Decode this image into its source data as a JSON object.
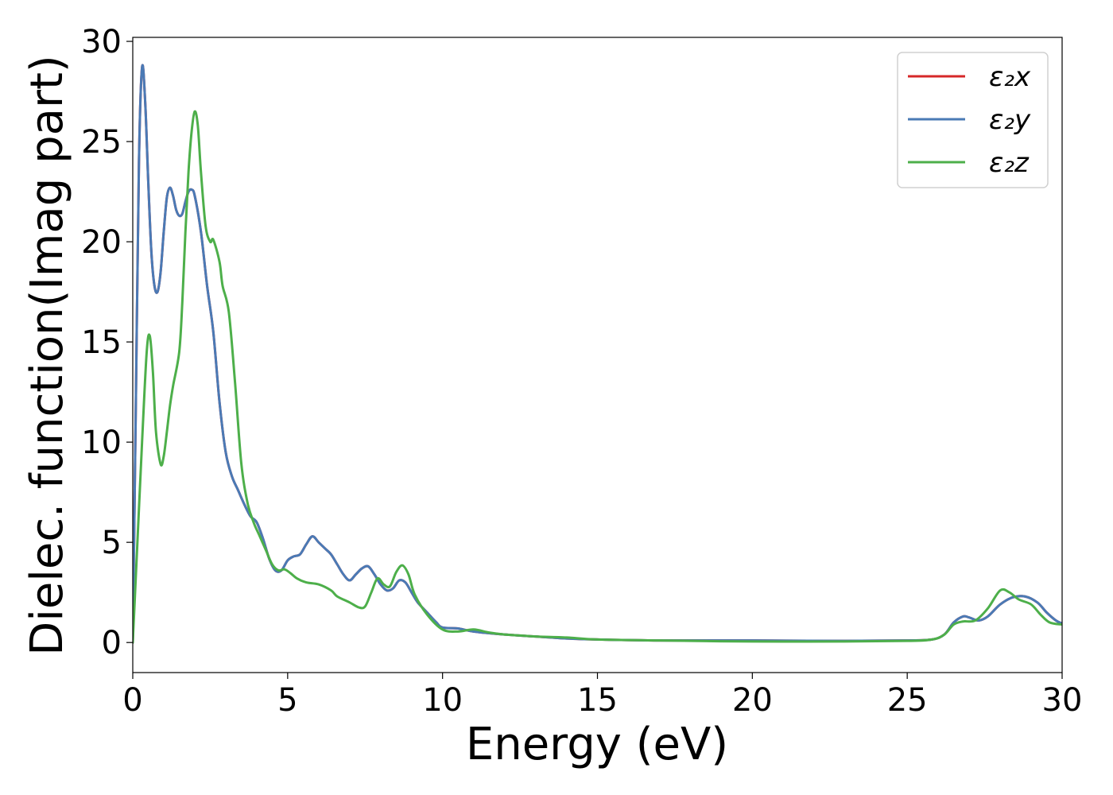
{
  "chart_data": {
    "type": "line",
    "title": "",
    "xlabel": "Energy (eV)",
    "ylabel": "Dielec. function(Imag part)",
    "xlim": [
      0,
      30
    ],
    "ylim": [
      -1.5,
      30.2
    ],
    "xticks": [
      0,
      5,
      10,
      15,
      20,
      25,
      30
    ],
    "yticks": [
      0,
      5,
      10,
      15,
      20,
      25,
      30
    ],
    "grid": false,
    "legend_position": "top-right",
    "series": [
      {
        "name": "ε₂x",
        "color": "#d62728",
        "points": [
          [
            0,
            0
          ],
          [
            0.1,
            12
          ],
          [
            0.2,
            24
          ],
          [
            0.3,
            28.7
          ],
          [
            0.4,
            27
          ],
          [
            0.5,
            23
          ],
          [
            0.6,
            19.5
          ],
          [
            0.7,
            17.8
          ],
          [
            0.8,
            17.5
          ],
          [
            0.9,
            18.5
          ],
          [
            1.0,
            20.5
          ],
          [
            1.1,
            22.2
          ],
          [
            1.2,
            22.7
          ],
          [
            1.3,
            22.3
          ],
          [
            1.4,
            21.6
          ],
          [
            1.5,
            21.3
          ],
          [
            1.6,
            21.4
          ],
          [
            1.7,
            22
          ],
          [
            1.8,
            22.5
          ],
          [
            1.9,
            22.6
          ],
          [
            2.0,
            22.3
          ],
          [
            2.2,
            20.5
          ],
          [
            2.4,
            17.8
          ],
          [
            2.6,
            15.5
          ],
          [
            2.8,
            12
          ],
          [
            3.0,
            9.5
          ],
          [
            3.2,
            8.3
          ],
          [
            3.4,
            7.6
          ],
          [
            3.6,
            6.9
          ],
          [
            3.8,
            6.3
          ],
          [
            4.0,
            6
          ],
          [
            4.2,
            5.2
          ],
          [
            4.4,
            4.2
          ],
          [
            4.6,
            3.6
          ],
          [
            4.8,
            3.6
          ],
          [
            5.0,
            4.1
          ],
          [
            5.2,
            4.3
          ],
          [
            5.4,
            4.4
          ],
          [
            5.6,
            4.9
          ],
          [
            5.8,
            5.3
          ],
          [
            6.0,
            5.0
          ],
          [
            6.2,
            4.7
          ],
          [
            6.4,
            4.4
          ],
          [
            6.6,
            3.9
          ],
          [
            6.8,
            3.4
          ],
          [
            7.0,
            3.1
          ],
          [
            7.2,
            3.4
          ],
          [
            7.4,
            3.7
          ],
          [
            7.6,
            3.8
          ],
          [
            7.8,
            3.4
          ],
          [
            8.0,
            2.9
          ],
          [
            8.2,
            2.6
          ],
          [
            8.4,
            2.7
          ],
          [
            8.6,
            3.1
          ],
          [
            8.8,
            3.0
          ],
          [
            9.0,
            2.5
          ],
          [
            9.2,
            2.0
          ],
          [
            9.5,
            1.5
          ],
          [
            9.8,
            1.0
          ],
          [
            10.0,
            0.75
          ],
          [
            10.5,
            0.7
          ],
          [
            11.0,
            0.55
          ],
          [
            12.0,
            0.4
          ],
          [
            13.0,
            0.3
          ],
          [
            14.0,
            0.2
          ],
          [
            15.0,
            0.15
          ],
          [
            17.0,
            0.1
          ],
          [
            20.0,
            0.1
          ],
          [
            23.0,
            0.08
          ],
          [
            25.0,
            0.1
          ],
          [
            25.8,
            0.15
          ],
          [
            26.2,
            0.4
          ],
          [
            26.5,
            1.0
          ],
          [
            26.8,
            1.3
          ],
          [
            27.0,
            1.25
          ],
          [
            27.3,
            1.1
          ],
          [
            27.6,
            1.3
          ],
          [
            28.0,
            1.9
          ],
          [
            28.4,
            2.25
          ],
          [
            28.8,
            2.3
          ],
          [
            29.2,
            2.0
          ],
          [
            29.5,
            1.5
          ],
          [
            29.8,
            1.1
          ],
          [
            30.0,
            0.95
          ]
        ]
      },
      {
        "name": "ε₂y",
        "color": "#4a7ab5",
        "points": [
          [
            0,
            0
          ],
          [
            0.1,
            12
          ],
          [
            0.2,
            24
          ],
          [
            0.3,
            28.7
          ],
          [
            0.4,
            27
          ],
          [
            0.5,
            23
          ],
          [
            0.6,
            19.5
          ],
          [
            0.7,
            17.8
          ],
          [
            0.8,
            17.5
          ],
          [
            0.9,
            18.5
          ],
          [
            1.0,
            20.5
          ],
          [
            1.1,
            22.2
          ],
          [
            1.2,
            22.7
          ],
          [
            1.3,
            22.3
          ],
          [
            1.4,
            21.6
          ],
          [
            1.5,
            21.3
          ],
          [
            1.6,
            21.4
          ],
          [
            1.7,
            22
          ],
          [
            1.8,
            22.5
          ],
          [
            1.9,
            22.6
          ],
          [
            2.0,
            22.3
          ],
          [
            2.2,
            20.5
          ],
          [
            2.4,
            17.8
          ],
          [
            2.6,
            15.5
          ],
          [
            2.8,
            12
          ],
          [
            3.0,
            9.5
          ],
          [
            3.2,
            8.3
          ],
          [
            3.4,
            7.6
          ],
          [
            3.6,
            6.9
          ],
          [
            3.8,
            6.3
          ],
          [
            4.0,
            6
          ],
          [
            4.2,
            5.2
          ],
          [
            4.4,
            4.2
          ],
          [
            4.6,
            3.6
          ],
          [
            4.8,
            3.6
          ],
          [
            5.0,
            4.1
          ],
          [
            5.2,
            4.3
          ],
          [
            5.4,
            4.4
          ],
          [
            5.6,
            4.9
          ],
          [
            5.8,
            5.3
          ],
          [
            6.0,
            5.0
          ],
          [
            6.2,
            4.7
          ],
          [
            6.4,
            4.4
          ],
          [
            6.6,
            3.9
          ],
          [
            6.8,
            3.4
          ],
          [
            7.0,
            3.1
          ],
          [
            7.2,
            3.4
          ],
          [
            7.4,
            3.7
          ],
          [
            7.6,
            3.8
          ],
          [
            7.8,
            3.4
          ],
          [
            8.0,
            2.9
          ],
          [
            8.2,
            2.6
          ],
          [
            8.4,
            2.7
          ],
          [
            8.6,
            3.1
          ],
          [
            8.8,
            3.0
          ],
          [
            9.0,
            2.5
          ],
          [
            9.2,
            2.0
          ],
          [
            9.5,
            1.5
          ],
          [
            9.8,
            1.0
          ],
          [
            10.0,
            0.75
          ],
          [
            10.5,
            0.7
          ],
          [
            11.0,
            0.55
          ],
          [
            12.0,
            0.4
          ],
          [
            13.0,
            0.3
          ],
          [
            14.0,
            0.2
          ],
          [
            15.0,
            0.15
          ],
          [
            17.0,
            0.1
          ],
          [
            20.0,
            0.1
          ],
          [
            23.0,
            0.08
          ],
          [
            25.0,
            0.1
          ],
          [
            25.8,
            0.15
          ],
          [
            26.2,
            0.4
          ],
          [
            26.5,
            1.0
          ],
          [
            26.8,
            1.3
          ],
          [
            27.0,
            1.25
          ],
          [
            27.3,
            1.1
          ],
          [
            27.6,
            1.3
          ],
          [
            28.0,
            1.9
          ],
          [
            28.4,
            2.25
          ],
          [
            28.8,
            2.3
          ],
          [
            29.2,
            2.0
          ],
          [
            29.5,
            1.5
          ],
          [
            29.8,
            1.1
          ],
          [
            30.0,
            0.95
          ]
        ]
      },
      {
        "name": "ε₂z",
        "color": "#4daf4a",
        "points": [
          [
            0,
            0
          ],
          [
            0.15,
            5
          ],
          [
            0.3,
            10
          ],
          [
            0.45,
            14.5
          ],
          [
            0.55,
            15.3
          ],
          [
            0.65,
            13.5
          ],
          [
            0.75,
            10.5
          ],
          [
            0.9,
            8.9
          ],
          [
            1.0,
            9.3
          ],
          [
            1.1,
            10.5
          ],
          [
            1.2,
            11.8
          ],
          [
            1.3,
            12.8
          ],
          [
            1.5,
            14.5
          ],
          [
            1.6,
            17
          ],
          [
            1.7,
            20.5
          ],
          [
            1.8,
            23.5
          ],
          [
            1.9,
            25.5
          ],
          [
            2.0,
            26.5
          ],
          [
            2.1,
            25.8
          ],
          [
            2.2,
            23.5
          ],
          [
            2.35,
            20.8
          ],
          [
            2.5,
            20
          ],
          [
            2.6,
            20.1
          ],
          [
            2.8,
            19
          ],
          [
            2.9,
            17.8
          ],
          [
            3.1,
            16.5
          ],
          [
            3.3,
            13
          ],
          [
            3.5,
            9
          ],
          [
            3.7,
            7
          ],
          [
            3.9,
            6
          ],
          [
            4.1,
            5.3
          ],
          [
            4.3,
            4.6
          ],
          [
            4.5,
            3.9
          ],
          [
            4.7,
            3.6
          ],
          [
            4.9,
            3.65
          ],
          [
            5.1,
            3.45
          ],
          [
            5.3,
            3.2
          ],
          [
            5.6,
            3.0
          ],
          [
            6.0,
            2.9
          ],
          [
            6.4,
            2.6
          ],
          [
            6.6,
            2.3
          ],
          [
            7.0,
            2.0
          ],
          [
            7.3,
            1.75
          ],
          [
            7.5,
            1.8
          ],
          [
            7.7,
            2.5
          ],
          [
            7.9,
            3.2
          ],
          [
            8.1,
            2.9
          ],
          [
            8.3,
            2.8
          ],
          [
            8.5,
            3.5
          ],
          [
            8.7,
            3.85
          ],
          [
            8.9,
            3.4
          ],
          [
            9.1,
            2.4
          ],
          [
            9.5,
            1.4
          ],
          [
            10.0,
            0.65
          ],
          [
            10.5,
            0.55
          ],
          [
            11.0,
            0.65
          ],
          [
            11.5,
            0.5
          ],
          [
            12.0,
            0.4
          ],
          [
            12.5,
            0.35
          ],
          [
            13.0,
            0.3
          ],
          [
            14.0,
            0.25
          ],
          [
            15.0,
            0.15
          ],
          [
            17.0,
            0.1
          ],
          [
            20.0,
            0.05
          ],
          [
            23.0,
            0.05
          ],
          [
            25.0,
            0.08
          ],
          [
            25.8,
            0.15
          ],
          [
            26.2,
            0.4
          ],
          [
            26.5,
            0.9
          ],
          [
            26.8,
            1.05
          ],
          [
            27.2,
            1.1
          ],
          [
            27.6,
            1.7
          ],
          [
            28.0,
            2.6
          ],
          [
            28.3,
            2.5
          ],
          [
            28.6,
            2.15
          ],
          [
            29.0,
            1.9
          ],
          [
            29.3,
            1.4
          ],
          [
            29.6,
            1.0
          ],
          [
            30.0,
            0.9
          ]
        ]
      }
    ]
  }
}
